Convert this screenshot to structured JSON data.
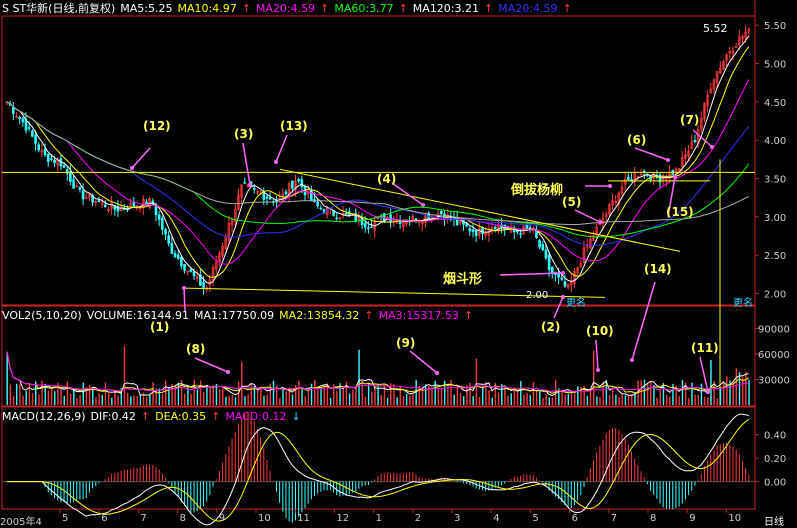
{
  "chart_header": {
    "title": "S ST华新(日线,前复权)",
    "ma5": "MA5:5.25",
    "ma10": "MA10:4.97",
    "ma20": "MA20:4.59",
    "ma60": "MA60:3.77",
    "ma120": "MA120:3.21",
    "ma20b": "MA20:4.59",
    "arrow": "↑"
  },
  "volume_header": {
    "title": "VOL2(5,10,20)",
    "volume": "VOLUME:16144.91",
    "ma1": "MA1:17750.09",
    "ma2": "MA2:13854.32",
    "ma3": "MA3:15317.53",
    "arrow": "↑"
  },
  "macd_header": {
    "title": "MACD(12,26,9)",
    "dif": "DIF:0.42",
    "dea": "DEA:0.35",
    "macd": "MACD:0.12",
    "arrow": "↑",
    "arrow_down": "↓"
  },
  "price_labels": {
    "high": "5.52",
    "low": "2.00"
  },
  "badges": {
    "rename1": "更名",
    "rename2": "更名"
  },
  "annotations": {
    "a1": "(1)",
    "a2": "(2)",
    "a3": "(3)",
    "a4": "(4)",
    "a5": "(5)",
    "a6": "(6)",
    "a7": "(7)",
    "a8": "(8)",
    "a9": "(9)",
    "a10": "(10)",
    "a11": "(11)",
    "a12": "(12)",
    "a13": "(13)",
    "a14": "(14)",
    "a15": "(15)",
    "pattern1": "倒拔杨柳",
    "pattern2": "烟斗形"
  },
  "x_axis": {
    "year_label": "2005年4",
    "months": [
      "5",
      "6",
      "7",
      "8",
      "9",
      "10",
      "11",
      "12",
      "1",
      "2",
      "3",
      "4",
      "5",
      "6",
      "7",
      "8",
      "9",
      "10"
    ],
    "period": "日线"
  },
  "colors": {
    "up": "#ff3a3a",
    "down": "#33ffff",
    "ma5": "#ffffff",
    "ma10": "#ffff00",
    "ma20": "#ff00ff",
    "ma60": "#00ff00",
    "ma120": "#ffffff",
    "ma20b": "#3333ff",
    "axis": "#cc2222"
  },
  "chart_data": [
    {
      "type": "candlestick",
      "title": "S ST华新(日线,前复权)",
      "y_ticks": [
        2.0,
        2.5,
        3.0,
        3.5,
        4.0,
        4.5,
        5.0,
        5.5
      ],
      "ylim": [
        1.85,
        5.62
      ],
      "x_ticks": [
        "2005年4",
        "5",
        "6",
        "7",
        "8",
        "9",
        "10",
        "11",
        "12",
        "1",
        "2",
        "3",
        "4",
        "5",
        "6",
        "7",
        "8",
        "9",
        "10"
      ],
      "close_series_approx": [
        4.5,
        4.2,
        3.8,
        3.7,
        3.3,
        3.2,
        3.1,
        3.15,
        3.2,
        2.6,
        2.3,
        2.05,
        2.7,
        3.4,
        3.3,
        3.2,
        3.5,
        3.15,
        3.05,
        3.0,
        2.9,
        3.0,
        2.95,
        3.0,
        3.05,
        2.9,
        2.8,
        2.9,
        2.8,
        2.85,
        2.3,
        2.05,
        2.6,
        3.0,
        3.4,
        3.6,
        3.5,
        3.6,
        4.0,
        4.8,
        5.2,
        5.45
      ],
      "marked_high": 5.52,
      "marked_low": 2.0
    },
    {
      "type": "bar",
      "title": "VOL2(5,10,20)",
      "y_ticks": [
        30000,
        60000,
        90000
      ],
      "ylim": [
        0,
        100000
      ]
    },
    {
      "type": "bar",
      "title": "MACD(12,26,9)",
      "y_ticks": [
        0.0,
        0.2,
        0.4
      ],
      "ylim": [
        -0.2,
        0.5
      ]
    }
  ]
}
